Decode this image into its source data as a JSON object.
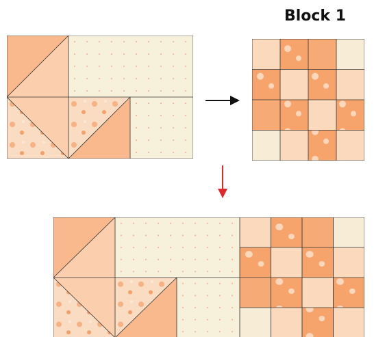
{
  "title": "Block 1"
}
